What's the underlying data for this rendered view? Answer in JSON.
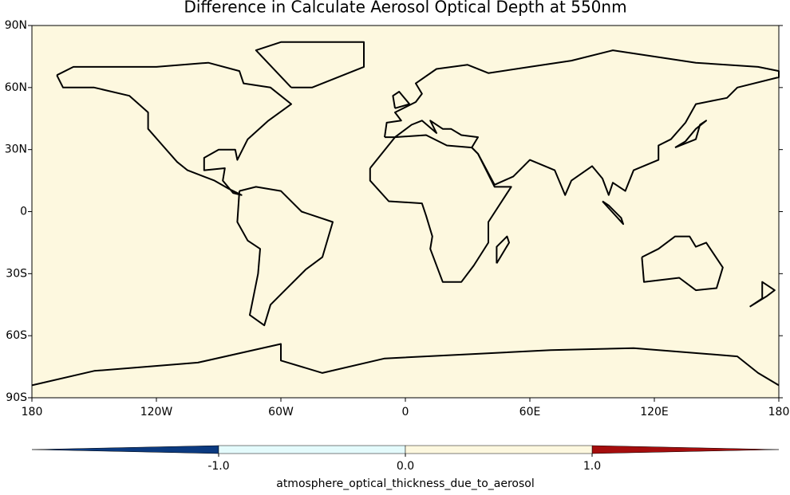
{
  "chart_data": {
    "type": "map",
    "title": "Difference in Calculate Aerosol Optical Depth at 550nm",
    "field_color": "#fdf8df",
    "xlim": [
      -180,
      180
    ],
    "xticks": [
      {
        "value": -180,
        "label": "180"
      },
      {
        "value": -120,
        "label": "120W"
      },
      {
        "value": -60,
        "label": "60W"
      },
      0,
      {
        "value": 60,
        "label": "60E"
      },
      {
        "value": 120,
        "label": "120E"
      },
      {
        "value": 180,
        "label": "180"
      }
    ],
    "ylim": [
      -90,
      90
    ],
    "yticks": [
      {
        "value": 90,
        "label": "90N"
      },
      {
        "value": 60,
        "label": "60N"
      },
      {
        "value": 30,
        "label": "30N"
      },
      0,
      {
        "value": -30,
        "label": "30S"
      },
      {
        "value": -60,
        "label": "60S"
      },
      {
        "value": -90,
        "label": "90S"
      }
    ],
    "colorbar": {
      "label": "atmosphere_optical_thickness_due_to_aerosol",
      "ticks": [
        {
          "value": -1,
          "label": "-1.0"
        },
        {
          "value": 0,
          "label": "0.0"
        },
        {
          "value": 1,
          "label": "1.0"
        }
      ],
      "colors": [
        "#e4fbfc",
        "#fdf8df"
      ],
      "under_color": "#0b3a80",
      "over_color": "#a50d0d"
    }
  }
}
